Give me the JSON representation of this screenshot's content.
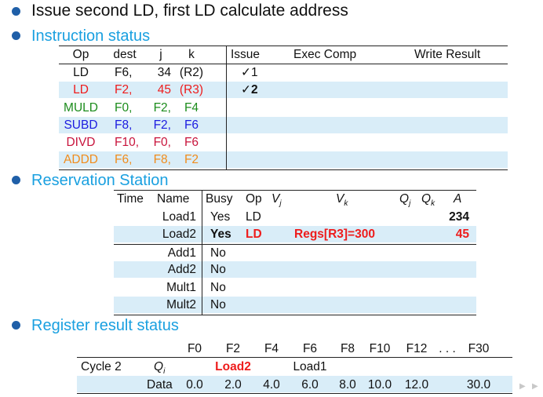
{
  "title": "Issue second LD, first LD calculate address",
  "sections": {
    "instruction_status": "Instruction status",
    "reservation_station": "Reservation Station",
    "register_result_status": "Register result status"
  },
  "instr": {
    "headers": {
      "op": "Op",
      "dest": "dest",
      "j": "j",
      "k": "k",
      "issue": "Issue",
      "exec": "Exec Comp",
      "write": "Write Result"
    },
    "rows": [
      {
        "op": "LD",
        "dest": "F6,",
        "j": "34",
        "k": "(R2)",
        "issue": "✓1",
        "color": "#111111"
      },
      {
        "op": "LD",
        "dest": "F2,",
        "j": "45",
        "k": "(R3)",
        "issue": "✓2",
        "color": "#ee1c1c"
      },
      {
        "op": "MULD",
        "dest": "F0,",
        "j": "F2,",
        "k": "F4",
        "issue": "",
        "color": "#1c8c1c"
      },
      {
        "op": "SUBD",
        "dest": "F8,",
        "j": "F2,",
        "k": "F6",
        "issue": "",
        "color": "#1c1ce0"
      },
      {
        "op": "DIVD",
        "dest": "F10,",
        "j": "F0,",
        "k": "F6",
        "issue": "",
        "color": "#c8143c"
      },
      {
        "op": "ADDD",
        "dest": "F6,",
        "j": "F8,",
        "k": "F2",
        "issue": "",
        "color": "#f08c1c"
      }
    ]
  },
  "rs": {
    "headers": {
      "time": "Time",
      "name": "Name",
      "busy": "Busy",
      "op": "Op",
      "vj": "V",
      "vj_sub": "j",
      "vk": "V",
      "vk_sub": "k",
      "qj": "Q",
      "qj_sub": "j",
      "qk": "Q",
      "qk_sub": "k",
      "a": "A"
    },
    "rows": [
      {
        "name": "Load1",
        "busy": "Yes",
        "op": "LD",
        "vk": "",
        "a": "234"
      },
      {
        "name": "Load2",
        "busy": "Yes",
        "op": "LD",
        "vk": "Regs[R3]=300",
        "a": "45"
      },
      {
        "name": "Add1",
        "busy": "No",
        "op": "",
        "vk": "",
        "a": ""
      },
      {
        "name": "Add2",
        "busy": "No",
        "op": "",
        "vk": "",
        "a": ""
      },
      {
        "name": "Mult1",
        "busy": "No",
        "op": "",
        "vk": "",
        "a": ""
      },
      {
        "name": "Mult2",
        "busy": "No",
        "op": "",
        "vk": "",
        "a": ""
      }
    ]
  },
  "reg": {
    "regs": [
      "F0",
      "F2",
      "F4",
      "F6",
      "F8",
      "F10",
      "F12",
      ". . .",
      "F30"
    ],
    "cycle_label": "Cycle 2",
    "qi_label": "Q",
    "qi_sub": "i",
    "qi": [
      "",
      "Load2",
      "",
      "Load1",
      "",
      "",
      "",
      "",
      ""
    ],
    "data_label": "Data",
    "data": [
      "0.0",
      "2.0",
      "4.0",
      "6.0",
      "8.0",
      "10.0",
      "12.0",
      "",
      "30.0"
    ]
  },
  "colors": {
    "accent": "#1aa0e0",
    "bullet": "#1f5fa8",
    "band": "#d9edf8",
    "highlight": "#ee1c1c"
  }
}
